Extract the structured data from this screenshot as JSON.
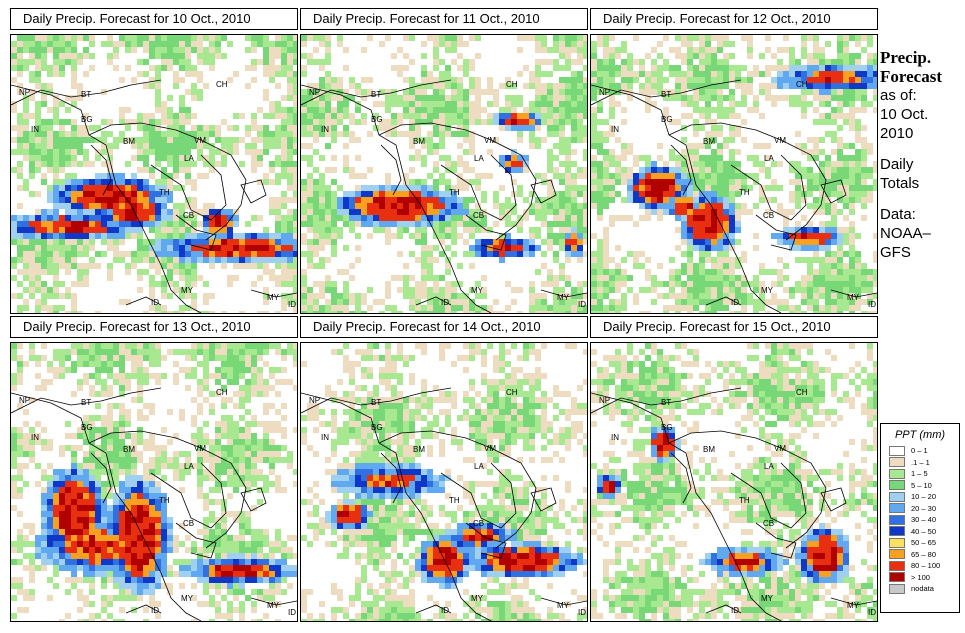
{
  "panels": [
    {
      "title": "Daily Precip. Forecast for  10 Oct., 2010"
    },
    {
      "title": "Daily Precip. Forecast for  11 Oct., 2010"
    },
    {
      "title": "Daily Precip. Forecast for  12 Oct., 2010"
    },
    {
      "title": "Daily Precip. Forecast for  13 Oct., 2010"
    },
    {
      "title": "Daily Precip. Forecast for  14 Oct., 2010"
    },
    {
      "title": "Daily Precip. Forecast for  15 Oct., 2010"
    }
  ],
  "country_codes": [
    "NP",
    "BT",
    "CH",
    "IN",
    "BG",
    "BM",
    "VM",
    "LA",
    "TH",
    "CB",
    "MY",
    "ID",
    "MY",
    "ID"
  ],
  "sidebar": {
    "title_line1": "Precip.",
    "title_line2": "Forecast",
    "asof": "as of:",
    "date_line1": "10 Oct.",
    "date_line2": "2010",
    "daily1": "Daily",
    "daily2": "Totals",
    "data1": "Data:",
    "data2": "NOAA–",
    "data3": "GFS"
  },
  "legend": {
    "title": "PPT (mm)",
    "items": [
      {
        "label": "0 – 1",
        "color": "#ffffff"
      },
      {
        "label": ".1 – 1",
        "color": "#eedcc0"
      },
      {
        "label": "1 – 5",
        "color": "#a8e890"
      },
      {
        "label": "5 – 10",
        "color": "#78d878"
      },
      {
        "label": "10 – 20",
        "color": "#a0d0f0"
      },
      {
        "label": "20 – 30",
        "color": "#60a8f0"
      },
      {
        "label": "30 – 40",
        "color": "#3070e0"
      },
      {
        "label": "40 – 50",
        "color": "#1038c8"
      },
      {
        "label": "50 – 65",
        "color": "#f8e060"
      },
      {
        "label": "65 – 80",
        "color": "#f8a020"
      },
      {
        "label": "80 – 100",
        "color": "#e83010"
      },
      {
        "label": "> 100",
        "color": "#b00000"
      },
      {
        "label": "nodata",
        "color": "#c8c8c8"
      }
    ]
  }
}
